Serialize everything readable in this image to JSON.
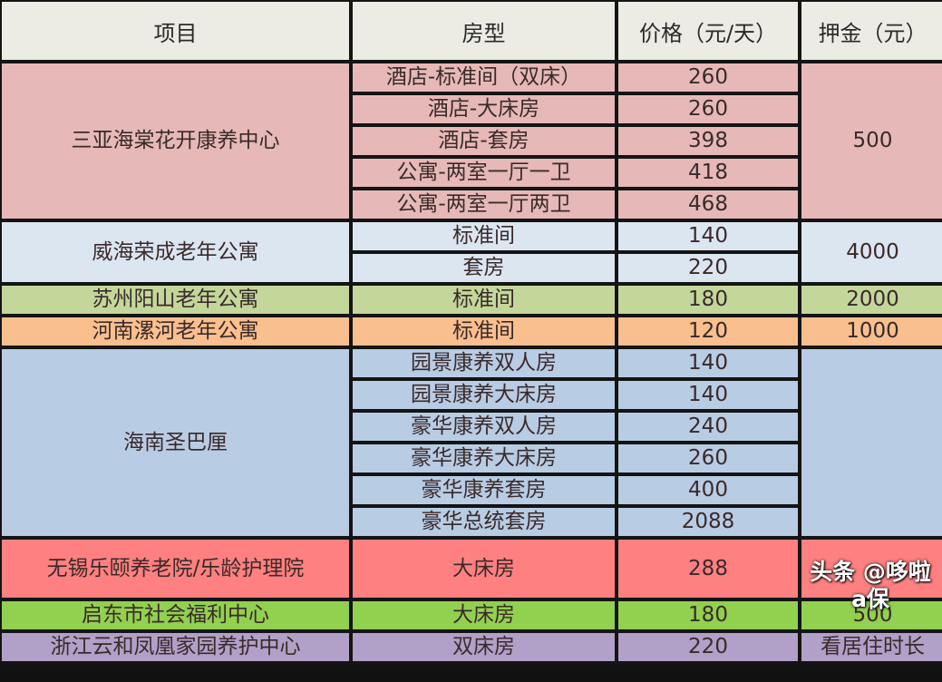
{
  "header": [
    "项目",
    "房型",
    "价格（元/天）",
    "押金（元）"
  ],
  "groups": [
    {
      "project": "三亚海棠花开康养中心",
      "color": "#e6b9b8",
      "deposit": "500",
      "rows": [
        [
          "酒店-标准间（双床）",
          "260"
        ],
        [
          "酒店-大床房",
          "260"
        ],
        [
          "酒店-套房",
          "398"
        ],
        [
          "公寓-两室一厅一卫",
          "418"
        ],
        [
          "公寓-两室一厅两卫",
          "468"
        ]
      ]
    },
    {
      "project": "威海荣成老年公寓",
      "color": "#dce6f1",
      "deposit": "4000",
      "rows": [
        [
          "标准间",
          "140"
        ],
        [
          "套房",
          "220"
        ]
      ]
    },
    {
      "project": "苏州阳山老年公寓",
      "color": "#c4d79b",
      "deposit": "2000",
      "rows": [
        [
          "标准间",
          "180"
        ]
      ]
    },
    {
      "project": "河南漯河老年公寓",
      "color": "#fabf8f",
      "deposit": "1000",
      "rows": [
        [
          "标准间",
          "120"
        ]
      ]
    },
    {
      "project": "海南圣巴厘",
      "color": "#b8cce4",
      "deposit": "",
      "rows": [
        [
          "园景康养双人房",
          "140"
        ],
        [
          "园景康养大床房",
          "140"
        ],
        [
          "豪华康养双人房",
          "240"
        ],
        [
          "豪华康养大床房",
          "260"
        ],
        [
          "豪华康养套房",
          "400"
        ],
        [
          "豪华总统套房",
          "2088"
        ]
      ]
    },
    {
      "project": "无锡乐颐养老院/乐龄护理院",
      "color": "#ff8080",
      "deposit": "",
      "tall": true,
      "rows": [
        [
          "大床房",
          "288"
        ]
      ]
    },
    {
      "project": "启东市社会福利中心",
      "color": "#92d050",
      "deposit": "500",
      "rows": [
        [
          "大床房",
          "180"
        ]
      ]
    },
    {
      "project": "浙江云和凤凰家园养护中心",
      "color": "#b1a0c7",
      "deposit": "看居住时长",
      "rows": [
        [
          "双床房",
          "220"
        ]
      ]
    }
  ],
  "watermark": "头条 @哆啦a保"
}
